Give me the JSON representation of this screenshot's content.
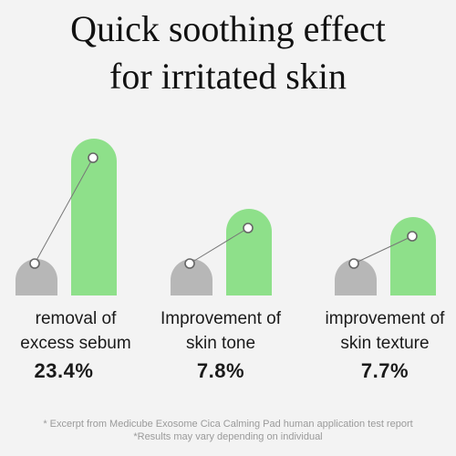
{
  "title": {
    "line1": "Quick soothing effect",
    "line2": "for irritated skin"
  },
  "colors": {
    "before_bar": "#b7b7b7",
    "after_bar": "#8ee08a",
    "connector": "#777777",
    "marker_fill": "#ffffff",
    "marker_stroke": "#666666"
  },
  "chart_data": {
    "type": "bar",
    "title": "Quick soothing effect for irritated skin",
    "categories": [
      "removal of excess sebum",
      "Improvement of skin tone",
      "improvement of skin texture"
    ],
    "series": [
      {
        "values": [
          1,
          1,
          1
        ]
      },
      {
        "values": [
          1.234,
          1.078,
          1.077
        ]
      }
    ],
    "improvement_labels": [
      "23.4%",
      "7.8%",
      "7.7%"
    ],
    "grid": false,
    "legend": "none"
  },
  "groups": [
    {
      "label_line1": "removal of",
      "label_line2": "excess sebum",
      "value": "23.4%"
    },
    {
      "label_line1": "Improvement of",
      "label_line2": "skin tone",
      "value": "7.8%"
    },
    {
      "label_line1": "improvement of",
      "label_line2": "skin texture",
      "value": "7.7%"
    }
  ],
  "footnotes": {
    "line1": "* Excerpt from Medicube Exosome Cica Calming Pad human application test report",
    "line2": "*Results may vary depending on individual"
  }
}
